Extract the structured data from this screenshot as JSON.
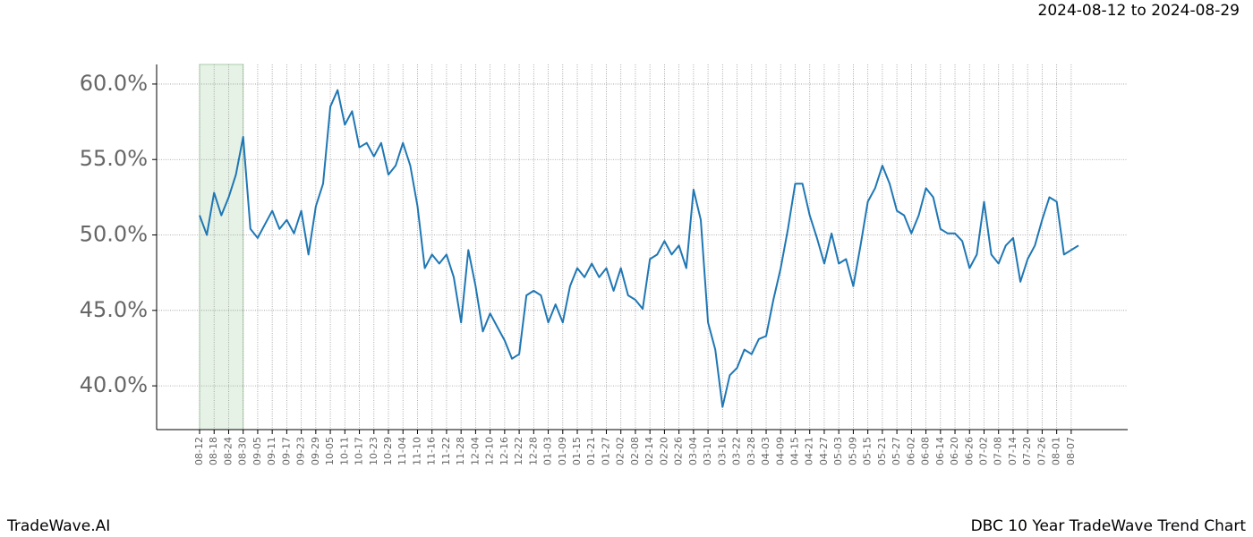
{
  "chart_data": {
    "type": "line",
    "date_range": "2024-08-12 to 2024-08-29",
    "brand": "TradeWave.AI",
    "title": "DBC 10 Year TradeWave Trend Chart",
    "categories": [
      "08-12",
      null,
      "08-18",
      null,
      "08-24",
      null,
      "08-30",
      null,
      "09-05",
      null,
      "09-11",
      null,
      "09-17",
      null,
      "09-23",
      null,
      "09-29",
      null,
      "10-05",
      null,
      "10-11",
      null,
      "10-17",
      null,
      "10-23",
      null,
      "10-29",
      null,
      "11-04",
      null,
      "11-10",
      null,
      "11-16",
      null,
      "11-22",
      null,
      "11-28",
      null,
      "12-04",
      null,
      "12-10",
      null,
      "12-16",
      null,
      "12-22",
      null,
      "12-28",
      null,
      "01-03",
      null,
      "01-09",
      null,
      "01-15",
      null,
      "01-21",
      null,
      "01-27",
      null,
      "02-02",
      null,
      "02-08",
      null,
      "02-14",
      null,
      "02-20",
      null,
      "02-26",
      null,
      "03-04",
      null,
      "03-10",
      null,
      "03-16",
      null,
      "03-22",
      null,
      "03-28",
      null,
      "04-03",
      null,
      "04-09",
      null,
      "04-15",
      null,
      "04-21",
      null,
      "04-27",
      null,
      "05-03",
      null,
      "05-09",
      null,
      "05-15",
      null,
      "05-21",
      null,
      "05-27",
      null,
      "06-02",
      null,
      "06-08",
      null,
      "06-14",
      null,
      "06-20",
      null,
      "06-26",
      null,
      "07-02",
      null,
      "07-08",
      null,
      "07-14",
      null,
      "07-20",
      null,
      "07-26",
      null,
      "08-01",
      null,
      "08-07",
      null
    ],
    "values": [
      51.3,
      50.0,
      52.8,
      51.3,
      52.5,
      54.0,
      56.5,
      50.4,
      49.8,
      50.7,
      51.6,
      50.4,
      51.0,
      50.1,
      51.6,
      48.7,
      51.9,
      53.4,
      58.5,
      59.6,
      57.3,
      58.2,
      55.8,
      56.1,
      55.2,
      56.1,
      54.0,
      54.6,
      56.1,
      54.6,
      51.9,
      47.8,
      48.7,
      48.1,
      48.7,
      47.2,
      44.2,
      49.0,
      46.6,
      43.6,
      44.8,
      43.9,
      43.0,
      41.8,
      42.1,
      46.0,
      46.3,
      46.0,
      44.2,
      45.4,
      44.2,
      46.6,
      47.8,
      47.2,
      48.1,
      47.2,
      47.8,
      46.3,
      47.8,
      46.0,
      45.7,
      45.1,
      48.4,
      48.7,
      49.6,
      48.7,
      49.3,
      47.8,
      53.0,
      51.0,
      44.2,
      42.4,
      38.6,
      40.7,
      41.2,
      42.4,
      42.1,
      43.1,
      43.3,
      45.7,
      47.8,
      50.4,
      53.4,
      53.4,
      51.3,
      49.8,
      48.1,
      50.1,
      48.1,
      48.4,
      46.6,
      49.3,
      52.2,
      53.1,
      54.6,
      53.4,
      51.6,
      51.3,
      50.1,
      51.3,
      53.1,
      52.5,
      50.4,
      50.1,
      50.1,
      49.6,
      47.8,
      48.7,
      52.2,
      48.7,
      48.1,
      49.3,
      49.8,
      46.9,
      48.4,
      49.3,
      51.0,
      52.5,
      52.2,
      48.7,
      49.0,
      49.3
    ],
    "color": "#1f77b4",
    "shade_from": "08-12",
    "shade_to": "08-30",
    "shade_color": "#e6f2e6",
    "ylim": [
      37.1,
      61.3
    ],
    "yticks": [
      {
        "value": 40,
        "label": "40.0%"
      },
      {
        "value": 45,
        "label": "45.0%"
      },
      {
        "value": 50,
        "label": "50.0%"
      },
      {
        "value": 55,
        "label": "55.0%"
      },
      {
        "value": 60,
        "label": "60.0%"
      }
    ],
    "grid": true
  }
}
